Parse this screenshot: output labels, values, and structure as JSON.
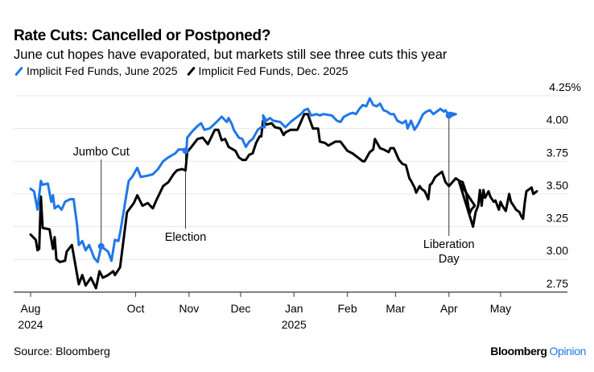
{
  "header": {
    "title": "Rate Cuts: Cancelled or Postponed?",
    "subtitle": "June cut hopes have evaporated, but markets still see three cuts this year"
  },
  "footer": {
    "source": "Source: Bloomberg",
    "brand_main": "Bloomberg",
    "brand_sub": "Opinion",
    "brand_sub_color": "#1f77e8"
  },
  "chart_data": {
    "type": "line",
    "title": "Rate Cuts: Cancelled or Postponed?",
    "subtitle": "June cut hopes have evaporated, but markets still see three cuts this year",
    "xlabel": "",
    "ylabel": "",
    "x_unit": "days since 2024-08-01",
    "xlim": [
      -3,
      282
    ],
    "ylim": [
      2.75,
      4.25
    ],
    "y_ticks": [
      {
        "value": 4.25,
        "label": "4.25%"
      },
      {
        "value": 4.0,
        "label": "4.00"
      },
      {
        "value": 3.75,
        "label": "3.75"
      },
      {
        "value": 3.5,
        "label": "3.50"
      },
      {
        "value": 3.25,
        "label": "3.25"
      },
      {
        "value": 3.0,
        "label": "3.00"
      },
      {
        "value": 2.75,
        "label": "2.75"
      }
    ],
    "x_ticks": [
      {
        "day": 0,
        "label": "Aug",
        "sublabel": "2024"
      },
      {
        "day": 61,
        "label": "Oct",
        "sublabel": ""
      },
      {
        "day": 92,
        "label": "Nov",
        "sublabel": ""
      },
      {
        "day": 122,
        "label": "Dec",
        "sublabel": ""
      },
      {
        "day": 153,
        "label": "Jan",
        "sublabel": "2025"
      },
      {
        "day": 184,
        "label": "Feb",
        "sublabel": ""
      },
      {
        "day": 212,
        "label": "Mar",
        "sublabel": ""
      },
      {
        "day": 243,
        "label": "Apr",
        "sublabel": ""
      },
      {
        "day": 273,
        "label": "May",
        "sublabel": ""
      }
    ],
    "grid": true,
    "legend_position": "top-left",
    "series": [
      {
        "name": "Implicit Fed Funds, June 2025",
        "color": "#1f77e8",
        "points": [
          [
            0,
            3.54
          ],
          [
            2,
            3.52
          ],
          [
            4,
            3.38
          ],
          [
            6,
            3.6
          ],
          [
            7,
            3.57
          ],
          [
            10,
            3.58
          ],
          [
            12,
            3.44
          ],
          [
            13,
            3.49
          ],
          [
            14,
            3.39
          ],
          [
            16,
            3.41
          ],
          [
            18,
            3.38
          ],
          [
            20,
            3.44
          ],
          [
            23,
            3.46
          ],
          [
            25,
            3.46
          ],
          [
            27,
            3.26
          ],
          [
            28,
            3.11
          ],
          [
            30,
            3.14
          ],
          [
            32,
            3.07
          ],
          [
            34,
            3.11
          ],
          [
            37,
            3.01
          ],
          [
            39,
            2.98
          ],
          [
            41,
            3.1
          ],
          [
            45,
            3.06
          ],
          [
            47,
            2.99
          ],
          [
            49,
            3.15
          ],
          [
            51,
            3.14
          ],
          [
            52,
            3.2
          ],
          [
            57,
            3.6
          ],
          [
            59,
            3.63
          ],
          [
            62,
            3.7
          ],
          [
            64,
            3.63
          ],
          [
            68,
            3.64
          ],
          [
            71,
            3.65
          ],
          [
            74,
            3.69
          ],
          [
            77,
            3.75
          ],
          [
            80,
            3.78
          ],
          [
            84,
            3.81
          ],
          [
            86,
            3.84
          ],
          [
            90,
            3.84
          ],
          [
            90.5,
            3.83
          ],
          [
            91,
            3.93
          ],
          [
            94,
            3.98
          ],
          [
            97,
            4.02
          ],
          [
            99,
            4.04
          ],
          [
            101,
            3.99
          ],
          [
            104,
            4.0
          ],
          [
            108,
            4.05
          ],
          [
            111,
            4.09
          ],
          [
            114,
            4.05
          ],
          [
            115,
            4.08
          ],
          [
            117,
            4.03
          ],
          [
            118,
            3.99
          ],
          [
            121,
            3.93
          ],
          [
            123,
            3.92
          ],
          [
            125,
            3.86
          ],
          [
            127,
            3.9
          ],
          [
            129,
            3.92
          ],
          [
            132,
            3.99
          ],
          [
            134,
            4.01
          ],
          [
            136,
            4.01
          ],
          [
            135,
            4.1
          ],
          [
            137,
            4.06
          ],
          [
            139,
            4.08
          ],
          [
            141,
            4.06
          ],
          [
            145,
            4.05
          ],
          [
            148,
            4.01
          ],
          [
            151,
            4.05
          ],
          [
            154,
            4.08
          ],
          [
            157,
            4.11
          ],
          [
            159,
            4.14
          ],
          [
            161,
            4.15
          ],
          [
            163,
            4.1
          ],
          [
            166,
            4.11
          ],
          [
            168,
            4.1
          ],
          [
            170,
            4.11
          ],
          [
            175,
            4.1
          ],
          [
            178,
            4.06
          ],
          [
            180,
            4.05
          ],
          [
            182,
            4.09
          ],
          [
            185,
            4.11
          ],
          [
            187,
            4.12
          ],
          [
            189,
            4.11
          ],
          [
            191,
            4.15
          ],
          [
            193,
            4.18
          ],
          [
            195,
            4.17
          ],
          [
            197,
            4.23
          ],
          [
            199,
            4.18
          ],
          [
            201,
            4.17
          ],
          [
            203,
            4.19
          ],
          [
            205,
            4.14
          ],
          [
            207,
            4.13
          ],
          [
            209,
            4.11
          ],
          [
            211,
            4.11
          ],
          [
            213,
            4.06
          ],
          [
            216,
            4.04
          ],
          [
            218,
            4.06
          ],
          [
            219,
            4.0
          ],
          [
            221,
            4.06
          ],
          [
            223,
            3.99
          ],
          [
            225,
            4.03
          ],
          [
            228,
            4.11
          ],
          [
            230,
            4.13
          ],
          [
            232,
            4.14
          ],
          [
            234,
            4.11
          ],
          [
            236,
            4.13
          ],
          [
            238,
            4.15
          ],
          [
            240,
            4.13
          ],
          [
            241,
            4.14
          ],
          [
            243,
            4.1
          ],
          [
            245,
            4.1
          ],
          [
            247,
            4.11
          ],
          [
            243.5,
            4.12
          ]
        ]
      },
      {
        "name": "Implicit Fed Funds, Dec. 2025",
        "color": "#000000",
        "points": [
          [
            0,
            3.19
          ],
          [
            3,
            3.15
          ],
          [
            4,
            3.07
          ],
          [
            5,
            3.08
          ],
          [
            6,
            3.48
          ],
          [
            7,
            3.24
          ],
          [
            11,
            3.23
          ],
          [
            13,
            3.08
          ],
          [
            14,
            3.17
          ],
          [
            15,
            3.0
          ],
          [
            17,
            2.98
          ],
          [
            20,
            2.99
          ],
          [
            21,
            3.06
          ],
          [
            24,
            3.11
          ],
          [
            28,
            2.81
          ],
          [
            30,
            2.88
          ],
          [
            32,
            2.8
          ],
          [
            35,
            2.86
          ],
          [
            38,
            2.78
          ],
          [
            40,
            2.91
          ],
          [
            42,
            2.86
          ],
          [
            45,
            2.88
          ],
          [
            48,
            2.91
          ],
          [
            49,
            2.88
          ],
          [
            52,
            2.94
          ],
          [
            56,
            3.36
          ],
          [
            60,
            3.43
          ],
          [
            62,
            3.49
          ],
          [
            65,
            3.41
          ],
          [
            68,
            3.43
          ],
          [
            71,
            3.39
          ],
          [
            73,
            3.45
          ],
          [
            77,
            3.56
          ],
          [
            80,
            3.59
          ],
          [
            83,
            3.65
          ],
          [
            85,
            3.68
          ],
          [
            88,
            3.69
          ],
          [
            90,
            3.68
          ],
          [
            91,
            3.82
          ],
          [
            94,
            3.87
          ],
          [
            97,
            3.92
          ],
          [
            100,
            3.93
          ],
          [
            103,
            3.88
          ],
          [
            107,
            3.99
          ],
          [
            109,
            3.99
          ],
          [
            111,
            3.91
          ],
          [
            113,
            3.92
          ],
          [
            115,
            3.86
          ],
          [
            119,
            3.83
          ],
          [
            121,
            3.78
          ],
          [
            123,
            3.76
          ],
          [
            125,
            3.76
          ],
          [
            127,
            3.8
          ],
          [
            129,
            3.81
          ],
          [
            131,
            3.89
          ],
          [
            133,
            3.94
          ],
          [
            134,
            3.94
          ],
          [
            135,
            4.06
          ],
          [
            137,
            4.03
          ],
          [
            140,
            4.04
          ],
          [
            142,
            4.01
          ],
          [
            145,
            4.0
          ],
          [
            147,
            3.95
          ],
          [
            148,
            3.97
          ],
          [
            151,
            3.99
          ],
          [
            155,
            3.99
          ],
          [
            157,
            4.05
          ],
          [
            159,
            4.11
          ],
          [
            161,
            4.11
          ],
          [
            164,
            4.0
          ],
          [
            167,
            4.0
          ],
          [
            168,
            3.9
          ],
          [
            171,
            3.89
          ],
          [
            173,
            3.87
          ],
          [
            177,
            3.9
          ],
          [
            180,
            3.9
          ],
          [
            184,
            3.83
          ],
          [
            187,
            3.81
          ],
          [
            189,
            3.79
          ],
          [
            193,
            3.75
          ],
          [
            194,
            3.75
          ],
          [
            197,
            3.82
          ],
          [
            199,
            3.84
          ],
          [
            200,
            3.92
          ],
          [
            203,
            3.85
          ],
          [
            205,
            3.84
          ],
          [
            208,
            3.82
          ],
          [
            209,
            3.85
          ],
          [
            211,
            3.85
          ],
          [
            214,
            3.76
          ],
          [
            216,
            3.73
          ],
          [
            218,
            3.72
          ],
          [
            220,
            3.62
          ],
          [
            221,
            3.6
          ],
          [
            223,
            3.55
          ],
          [
            224,
            3.51
          ],
          [
            226,
            3.56
          ],
          [
            227,
            3.54
          ],
          [
            229,
            3.52
          ],
          [
            231,
            3.46
          ],
          [
            232,
            3.57
          ],
          [
            233,
            3.58
          ],
          [
            235,
            3.63
          ],
          [
            237,
            3.65
          ],
          [
            239,
            3.67
          ],
          [
            241,
            3.59
          ],
          [
            243,
            3.56
          ],
          [
            245,
            3.59
          ],
          [
            247,
            3.62
          ],
          [
            249,
            3.6
          ],
          [
            251,
            3.59
          ],
          [
            253,
            3.51
          ],
          [
            255,
            3.35
          ],
          [
            256,
            3.38
          ],
          [
            258,
            3.41
          ],
          [
            249,
            3.59
          ],
          [
            257,
            3.25
          ],
          [
            258.5,
            3.36
          ],
          [
            260,
            3.41
          ],
          [
            261,
            3.53
          ],
          [
            262,
            3.41
          ],
          [
            263,
            3.53
          ],
          [
            264,
            3.47
          ],
          [
            266,
            3.52
          ],
          [
            267,
            3.48
          ],
          [
            269,
            3.44
          ],
          [
            270,
            3.45
          ],
          [
            272,
            3.38
          ],
          [
            273,
            3.44
          ],
          [
            274,
            3.41
          ],
          [
            276,
            3.37
          ],
          [
            278,
            3.5
          ],
          [
            279,
            3.44
          ],
          [
            281,
            3.4
          ],
          [
            282,
            3.38
          ],
          [
            284,
            3.36
          ],
          [
            285,
            3.33
          ],
          [
            286,
            3.31
          ],
          [
            287,
            3.43
          ],
          [
            288,
            3.52
          ],
          [
            290,
            3.54
          ],
          [
            291,
            3.55
          ],
          [
            292,
            3.5
          ],
          [
            294,
            3.52
          ]
        ]
      }
    ],
    "annotations": [
      {
        "label": "Jumbo Cut",
        "day": 41,
        "series": 0,
        "value": 3.1,
        "position": "above"
      },
      {
        "label": "Election",
        "day": 90,
        "series": 0,
        "value": 3.83,
        "position": "below"
      },
      {
        "label": "Liberation\nDay",
        "day": 243,
        "series": 0,
        "value": 4.1,
        "position": "below"
      }
    ]
  }
}
